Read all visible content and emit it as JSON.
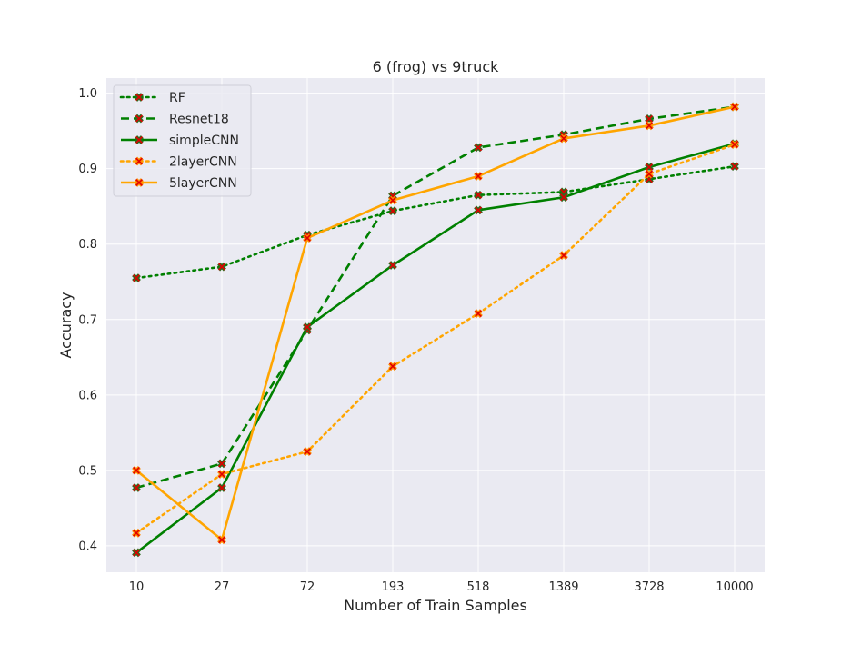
{
  "chart_data": {
    "type": "line",
    "title": "6 (frog)  vs 9truck",
    "xlabel": "Number of Train Samples",
    "ylabel": "Accuracy",
    "categories": [
      "10",
      "27",
      "72",
      "193",
      "518",
      "1389",
      "3728",
      "10000"
    ],
    "yticks": [
      "0.4",
      "0.5",
      "0.6",
      "0.7",
      "0.8",
      "0.9",
      "1.0"
    ],
    "ylim": [
      0.365,
      1.02
    ],
    "grid": true,
    "legend_position": "top-left",
    "background": "#eaeaf2",
    "series": [
      {
        "name": "RF",
        "color": "#008000",
        "linestyle": "dotted",
        "values": [
          0.755,
          0.77,
          0.812,
          0.844,
          0.865,
          0.869,
          0.886,
          0.903
        ]
      },
      {
        "name": "Resnet18",
        "color": "#008000",
        "linestyle": "dashed",
        "values": [
          0.477,
          0.509,
          0.686,
          0.864,
          0.928,
          0.945,
          0.966,
          0.982
        ]
      },
      {
        "name": "simpleCNN",
        "color": "#008000",
        "linestyle": "solid",
        "values": [
          0.391,
          0.477,
          0.69,
          0.772,
          0.845,
          0.862,
          0.902,
          0.933
        ]
      },
      {
        "name": "2layerCNN",
        "color": "#ffa500",
        "linestyle": "dotted",
        "values": [
          0.417,
          0.495,
          0.525,
          0.638,
          0.708,
          0.785,
          0.893,
          0.932
        ]
      },
      {
        "name": "5layerCNN",
        "color": "#ffa500",
        "linestyle": "solid",
        "values": [
          0.5,
          0.408,
          0.808,
          0.858,
          0.89,
          0.94,
          0.957,
          0.982
        ]
      }
    ]
  }
}
